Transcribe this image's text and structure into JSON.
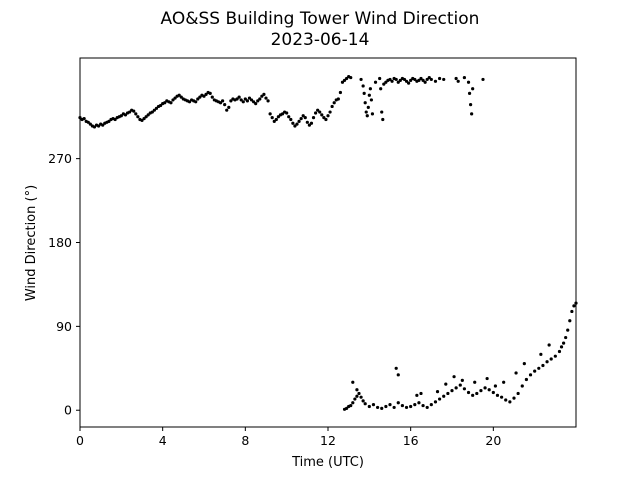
{
  "chart_data": {
    "type": "scatter",
    "title": "AO&SS Building Tower Wind Direction",
    "subtitle": "2023-06-14",
    "xlabel": "Time (UTC)",
    "ylabel": "Wind Direction (°)",
    "xlim": [
      0,
      24
    ],
    "ylim": [
      -18,
      378
    ],
    "xticks": [
      0,
      4,
      8,
      12,
      16,
      20
    ],
    "yticks": [
      0,
      90,
      180,
      270
    ],
    "grid": false,
    "marker_color": "#000000",
    "series": [
      {
        "points": [
          [
            0.0,
            314
          ],
          [
            0.1,
            312
          ],
          [
            0.2,
            313
          ],
          [
            0.3,
            310
          ],
          [
            0.4,
            309
          ],
          [
            0.5,
            307
          ],
          [
            0.6,
            305
          ],
          [
            0.7,
            304
          ],
          [
            0.8,
            306
          ],
          [
            0.9,
            305
          ],
          [
            1.0,
            307
          ],
          [
            1.1,
            306
          ],
          [
            1.2,
            308
          ],
          [
            1.3,
            309
          ],
          [
            1.4,
            310
          ],
          [
            1.5,
            312
          ],
          [
            1.6,
            313
          ],
          [
            1.7,
            312
          ],
          [
            1.8,
            314
          ],
          [
            1.9,
            315
          ],
          [
            2.0,
            316
          ],
          [
            2.1,
            318
          ],
          [
            2.2,
            317
          ],
          [
            2.3,
            319
          ],
          [
            2.4,
            320
          ],
          [
            2.5,
            322
          ],
          [
            2.6,
            321
          ],
          [
            2.7,
            318
          ],
          [
            2.8,
            315
          ],
          [
            2.9,
            312
          ],
          [
            3.0,
            311
          ],
          [
            3.1,
            313
          ],
          [
            3.2,
            315
          ],
          [
            3.3,
            317
          ],
          [
            3.4,
            319
          ],
          [
            3.5,
            320
          ],
          [
            3.6,
            322
          ],
          [
            3.7,
            324
          ],
          [
            3.8,
            326
          ],
          [
            3.9,
            327
          ],
          [
            4.0,
            329
          ],
          [
            4.1,
            330
          ],
          [
            4.2,
            332
          ],
          [
            4.3,
            331
          ],
          [
            4.4,
            330
          ],
          [
            4.5,
            333
          ],
          [
            4.6,
            335
          ],
          [
            4.7,
            337
          ],
          [
            4.8,
            338
          ],
          [
            4.9,
            336
          ],
          [
            5.0,
            334
          ],
          [
            5.1,
            333
          ],
          [
            5.2,
            332
          ],
          [
            5.3,
            331
          ],
          [
            5.4,
            333
          ],
          [
            5.5,
            332
          ],
          [
            5.6,
            331
          ],
          [
            5.7,
            334
          ],
          [
            5.8,
            336
          ],
          [
            5.9,
            338
          ],
          [
            6.0,
            337
          ],
          [
            6.1,
            339
          ],
          [
            6.2,
            341
          ],
          [
            6.3,
            340
          ],
          [
            6.4,
            336
          ],
          [
            6.5,
            333
          ],
          [
            6.6,
            332
          ],
          [
            6.7,
            331
          ],
          [
            6.8,
            330
          ],
          [
            6.9,
            332
          ],
          [
            7.0,
            328
          ],
          [
            7.1,
            322
          ],
          [
            7.2,
            325
          ],
          [
            7.3,
            332
          ],
          [
            7.4,
            334
          ],
          [
            7.5,
            333
          ],
          [
            7.6,
            334
          ],
          [
            7.7,
            336
          ],
          [
            7.8,
            333
          ],
          [
            7.9,
            331
          ],
          [
            8.0,
            334
          ],
          [
            8.1,
            332
          ],
          [
            8.2,
            335
          ],
          [
            8.3,
            333
          ],
          [
            8.4,
            331
          ],
          [
            8.5,
            329
          ],
          [
            8.6,
            332
          ],
          [
            8.7,
            334
          ],
          [
            8.8,
            337
          ],
          [
            8.9,
            339
          ],
          [
            9.0,
            335
          ],
          [
            9.1,
            332
          ],
          [
            9.2,
            318
          ],
          [
            9.3,
            314
          ],
          [
            9.4,
            310
          ],
          [
            9.5,
            312
          ],
          [
            9.6,
            315
          ],
          [
            9.7,
            317
          ],
          [
            9.8,
            318
          ],
          [
            9.9,
            320
          ],
          [
            10.0,
            319
          ],
          [
            10.1,
            315
          ],
          [
            10.2,
            312
          ],
          [
            10.3,
            308
          ],
          [
            10.4,
            305
          ],
          [
            10.5,
            307
          ],
          [
            10.6,
            310
          ],
          [
            10.7,
            313
          ],
          [
            10.8,
            316
          ],
          [
            10.9,
            314
          ],
          [
            11.0,
            309
          ],
          [
            11.1,
            306
          ],
          [
            11.2,
            308
          ],
          [
            11.3,
            314
          ],
          [
            11.4,
            319
          ],
          [
            11.5,
            322
          ],
          [
            11.6,
            320
          ],
          [
            11.7,
            317
          ],
          [
            11.8,
            314
          ],
          [
            11.9,
            312
          ],
          [
            12.0,
            316
          ],
          [
            12.1,
            320
          ],
          [
            12.2,
            326
          ],
          [
            12.3,
            330
          ],
          [
            12.4,
            333
          ],
          [
            12.5,
            334
          ],
          [
            12.6,
            341
          ],
          [
            12.7,
            352
          ],
          [
            12.8,
            354
          ],
          [
            12.9,
            356
          ],
          [
            13.0,
            358
          ],
          [
            13.1,
            357
          ],
          [
            13.6,
            355
          ],
          [
            13.7,
            348
          ],
          [
            13.75,
            340
          ],
          [
            13.8,
            330
          ],
          [
            13.85,
            320
          ],
          [
            13.9,
            316
          ],
          [
            13.95,
            325
          ],
          [
            14.0,
            338
          ],
          [
            14.05,
            345
          ],
          [
            14.1,
            333
          ],
          [
            14.15,
            318
          ],
          [
            14.3,
            352
          ],
          [
            14.5,
            356
          ],
          [
            14.55,
            345
          ],
          [
            14.6,
            320
          ],
          [
            14.65,
            312
          ],
          [
            14.7,
            350
          ],
          [
            14.8,
            352
          ],
          [
            14.9,
            354
          ],
          [
            15.0,
            355
          ],
          [
            15.1,
            353
          ],
          [
            15.2,
            356
          ],
          [
            15.3,
            355
          ],
          [
            15.4,
            352
          ],
          [
            15.5,
            354
          ],
          [
            15.6,
            356
          ],
          [
            15.7,
            355
          ],
          [
            15.8,
            353
          ],
          [
            15.9,
            351
          ],
          [
            16.0,
            354
          ],
          [
            16.1,
            356
          ],
          [
            16.2,
            355
          ],
          [
            16.3,
            353
          ],
          [
            16.4,
            354
          ],
          [
            16.5,
            356
          ],
          [
            16.6,
            354
          ],
          [
            16.7,
            352
          ],
          [
            16.8,
            355
          ],
          [
            16.9,
            357
          ],
          [
            17.0,
            355
          ],
          [
            17.2,
            353
          ],
          [
            17.4,
            356
          ],
          [
            17.6,
            355
          ],
          [
            18.2,
            356
          ],
          [
            18.3,
            353
          ],
          [
            18.6,
            357
          ],
          [
            18.8,
            352
          ],
          [
            18.85,
            340
          ],
          [
            18.9,
            328
          ],
          [
            18.95,
            318
          ],
          [
            19.0,
            345
          ],
          [
            19.5,
            355
          ],
          [
            12.8,
            1
          ],
          [
            12.9,
            2
          ],
          [
            13.0,
            4
          ],
          [
            13.1,
            5
          ],
          [
            13.2,
            8
          ],
          [
            13.3,
            12
          ],
          [
            13.4,
            15
          ],
          [
            13.5,
            18
          ],
          [
            13.6,
            14
          ],
          [
            13.7,
            10
          ],
          [
            13.8,
            7
          ],
          [
            14.0,
            4
          ],
          [
            14.2,
            6
          ],
          [
            14.4,
            3
          ],
          [
            14.6,
            2
          ],
          [
            14.8,
            4
          ],
          [
            15.0,
            6
          ],
          [
            15.2,
            3
          ],
          [
            15.4,
            8
          ],
          [
            15.6,
            5
          ],
          [
            15.8,
            3
          ],
          [
            16.0,
            4
          ],
          [
            16.2,
            6
          ],
          [
            16.4,
            8
          ],
          [
            16.6,
            5
          ],
          [
            16.8,
            3
          ],
          [
            17.0,
            6
          ],
          [
            17.2,
            9
          ],
          [
            17.4,
            12
          ],
          [
            17.6,
            15
          ],
          [
            17.8,
            18
          ],
          [
            18.0,
            21
          ],
          [
            18.2,
            24
          ],
          [
            18.4,
            27
          ],
          [
            18.6,
            23
          ],
          [
            18.8,
            19
          ],
          [
            19.0,
            16
          ],
          [
            19.2,
            18
          ],
          [
            19.4,
            21
          ],
          [
            19.6,
            24
          ],
          [
            19.8,
            22
          ],
          [
            20.0,
            19
          ],
          [
            20.2,
            16
          ],
          [
            20.4,
            14
          ],
          [
            20.6,
            11
          ],
          [
            20.8,
            9
          ],
          [
            21.0,
            13
          ],
          [
            21.2,
            18
          ],
          [
            21.4,
            26
          ],
          [
            21.6,
            33
          ],
          [
            21.8,
            38
          ],
          [
            22.0,
            42
          ],
          [
            22.2,
            45
          ],
          [
            22.4,
            48
          ],
          [
            22.6,
            52
          ],
          [
            22.8,
            55
          ],
          [
            23.0,
            58
          ],
          [
            23.2,
            63
          ],
          [
            23.4,
            72
          ],
          [
            23.5,
            78
          ],
          [
            23.6,
            86
          ],
          [
            23.7,
            96
          ],
          [
            23.8,
            106
          ],
          [
            23.9,
            112
          ],
          [
            24.0,
            115
          ],
          [
            13.2,
            30
          ],
          [
            13.4,
            22
          ],
          [
            15.3,
            45
          ],
          [
            15.4,
            38
          ],
          [
            16.3,
            16
          ],
          [
            16.5,
            18
          ],
          [
            17.3,
            20
          ],
          [
            17.7,
            28
          ],
          [
            18.1,
            36
          ],
          [
            18.5,
            32
          ],
          [
            19.1,
            30
          ],
          [
            19.7,
            34
          ],
          [
            20.1,
            26
          ],
          [
            20.5,
            30
          ],
          [
            21.1,
            40
          ],
          [
            21.5,
            50
          ],
          [
            22.3,
            60
          ],
          [
            22.7,
            70
          ],
          [
            23.3,
            68
          ]
        ]
      }
    ]
  }
}
